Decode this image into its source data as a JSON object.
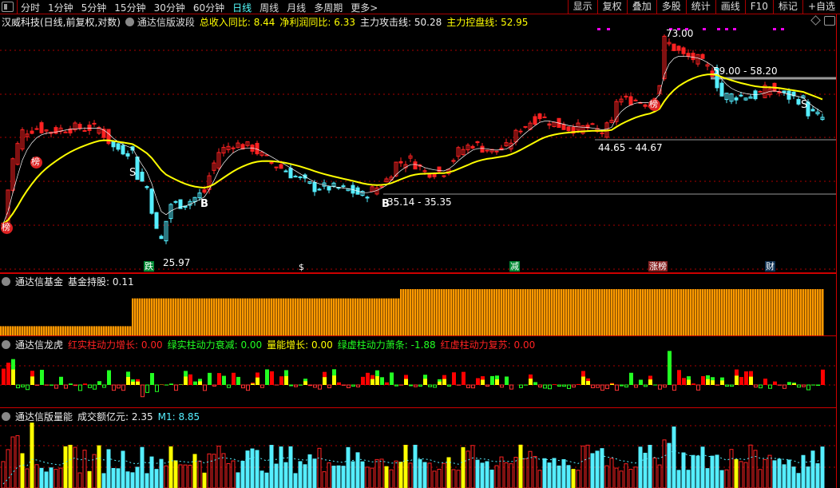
{
  "toolbar": {
    "periods": [
      "分时",
      "1分钟",
      "5分钟",
      "15分钟",
      "30分钟",
      "60分钟",
      "日线",
      "周线",
      "月线",
      "多周期",
      "更多>"
    ],
    "active": "日线",
    "buttons": [
      "显示",
      "复权",
      "叠加",
      "多股",
      "统计",
      "画线",
      "F10",
      "标记",
      "+自选"
    ]
  },
  "main": {
    "stock": "汉威科技(日线,前复权,对数)",
    "indicator": "通达信版波段",
    "values": [
      {
        "label": "总收入同比: 8.44",
        "color": "#ffff00"
      },
      {
        "label": "净利润同比: 6.33",
        "color": "#ffff00"
      },
      {
        "label": "主力攻击线: 50.28",
        "color": "#eeeeee"
      },
      {
        "label": "主力控盘线: 52.95",
        "color": "#ffff00"
      }
    ],
    "price_labels": {
      "high": "73.00",
      "low": "25.97",
      "range1": "59.00 - 58.20",
      "range2": "44.65 - 44.67",
      "range3": "35.14 - 35.35"
    },
    "markers": {
      "bang": "榜",
      "buy": "B",
      "sell": "S",
      "dollar": "$",
      "die": "跌",
      "jian": "减",
      "zhangbang": "涨榜",
      "cai": "财"
    },
    "price_path": [
      [
        0,
        30.9
      ],
      [
        2,
        41.3
      ],
      [
        4,
        46.9
      ],
      [
        7,
        47.7
      ],
      [
        10,
        46.9
      ],
      [
        13,
        47.7
      ],
      [
        17,
        47.7
      ],
      [
        20,
        47.7
      ],
      [
        23,
        43.6
      ],
      [
        27,
        42.8
      ],
      [
        28,
        38.4
      ],
      [
        30,
        36.4
      ],
      [
        32,
        29.8
      ],
      [
        33,
        28.7
      ],
      [
        35,
        33.8
      ],
      [
        38,
        33.8
      ],
      [
        42,
        35.7
      ],
      [
        43,
        38.4
      ],
      [
        45,
        42.8
      ],
      [
        48,
        44.4
      ],
      [
        52,
        43.6
      ],
      [
        55,
        41.3
      ],
      [
        58,
        39.8
      ],
      [
        62,
        37.7
      ],
      [
        65,
        36.4
      ],
      [
        68,
        36.4
      ],
      [
        72,
        36.0
      ],
      [
        75,
        35.1
      ],
      [
        78,
        36.4
      ],
      [
        80,
        37.7
      ],
      [
        82,
        40.6
      ],
      [
        85,
        41.3
      ],
      [
        88,
        39.1
      ],
      [
        92,
        39.1
      ],
      [
        95,
        42.8
      ],
      [
        98,
        44.4
      ],
      [
        102,
        42.8
      ],
      [
        105,
        43.6
      ],
      [
        108,
        47.7
      ],
      [
        112,
        50.4
      ],
      [
        115,
        48.6
      ],
      [
        118,
        47.7
      ],
      [
        122,
        47.7
      ],
      [
        125,
        46.9
      ],
      [
        127,
        48.6
      ],
      [
        128,
        54.2
      ],
      [
        132,
        54.2
      ],
      [
        135,
        53.2
      ],
      [
        137,
        58.3
      ],
      [
        138,
        71.1
      ],
      [
        142,
        66.1
      ],
      [
        145,
        65.0
      ],
      [
        148,
        61.5
      ],
      [
        150,
        55.2
      ],
      [
        153,
        55.2
      ],
      [
        157,
        55.2
      ],
      [
        160,
        57.2
      ],
      [
        163,
        55.2
      ],
      [
        167,
        54.2
      ],
      [
        168,
        51.3
      ],
      [
        171,
        49.9
      ]
    ]
  },
  "fund": {
    "indicator": "通达信基金",
    "label": "基金持股: 0.11",
    "levels": [
      0.2,
      0.8,
      1.0
    ]
  },
  "longhu": {
    "indicator": "通达信龙虎",
    "values": [
      {
        "label": "红实柱动力增长: 0.00",
        "color": "#ff2222"
      },
      {
        "label": "绿实柱动力衰减: 0.00",
        "color": "#22ff22"
      },
      {
        "label": "量能增长: 0.00",
        "color": "#ffff00"
      },
      {
        "label": "绿虚柱动力萧条: -1.88",
        "color": "#22ff22"
      },
      {
        "label": "红虚柱动力复苏: 0.00",
        "color": "#ff2222"
      }
    ]
  },
  "volume": {
    "indicator": "通达信版量能",
    "amount": "成交额亿元: 2.35",
    "m1": "M1: 8.85"
  },
  "colors": {
    "up": "#ff2222",
    "down": "#55eeff",
    "ma": "#ffff00",
    "grid": "#aa0000",
    "fund": "#ff9900"
  }
}
